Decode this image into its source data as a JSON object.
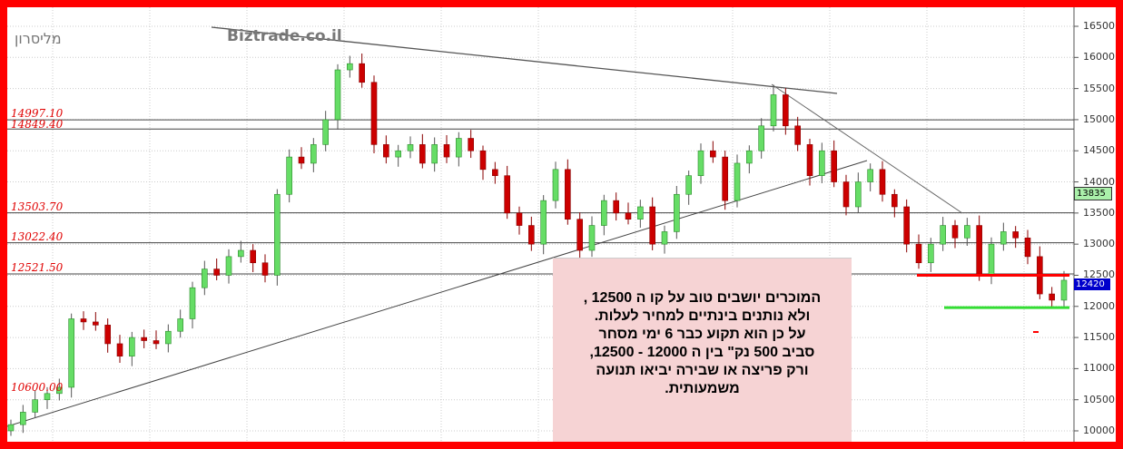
{
  "chart_data": {
    "type": "candlestick",
    "title": "",
    "ylim": [
      10000,
      16500
    ],
    "y_ticks": [
      16500,
      16000,
      15500,
      15000,
      14500,
      14000,
      13500,
      13000,
      12500,
      12000,
      11500,
      11000,
      10500,
      10000
    ],
    "grid": true,
    "closes": [
      10100,
      10300,
      10500,
      10600,
      10700,
      11800,
      11750,
      11700,
      11400,
      11200,
      11500,
      11450,
      11400,
      11600,
      11800,
      12300,
      12600,
      12500,
      12800,
      12900,
      12700,
      12500,
      13800,
      14400,
      14300,
      14600,
      15000,
      15800,
      15900,
      15600,
      14600,
      14400,
      14500,
      14600,
      14300,
      14600,
      14400,
      14700,
      14500,
      14200,
      14100,
      13500,
      13300,
      13000,
      13700,
      14200,
      13400,
      12900,
      13300,
      13700,
      13500,
      13400,
      13600,
      13000,
      13200,
      13800,
      14100,
      14500,
      14400,
      13700,
      14300,
      14500,
      14900,
      15400,
      14900,
      14600,
      14100,
      14500,
      14000,
      13600,
      14000,
      14200,
      13800,
      13600,
      13000,
      12700,
      13000,
      13300,
      13100,
      13300,
      12500,
      13000,
      13200,
      13100,
      12800,
      12200,
      12100,
      12420
    ],
    "levels": [
      "14997.10",
      "14849.40",
      "13503.70",
      "13022.40",
      "12521.50",
      "10600.00"
    ],
    "support_lines": [
      {
        "price": 12500,
        "color": "#ff0000"
      },
      {
        "price": 11980,
        "color": "#33dd33"
      }
    ],
    "last_price": "12420",
    "marker_price": "13835",
    "up_color": "#66dd66",
    "down_color": "#cc0000"
  },
  "watermark": "Biztrade.co.il",
  "instrument": "מליסרון",
  "note_lines": [
    "המוכרים יושבים  טוב  על  קו  ה  12500 ,",
    "ולא  נותנים  בינתיים  למחיר    לעלות.",
    "על  כן  הוא  תקוע  כבר  6  ימי מסחר",
    "סביב  500 נק\"  בין  ה  12000 - 12500,",
    "ורק  פריצה  או שבירה  יביאו תנועה",
    "משמעותית."
  ]
}
